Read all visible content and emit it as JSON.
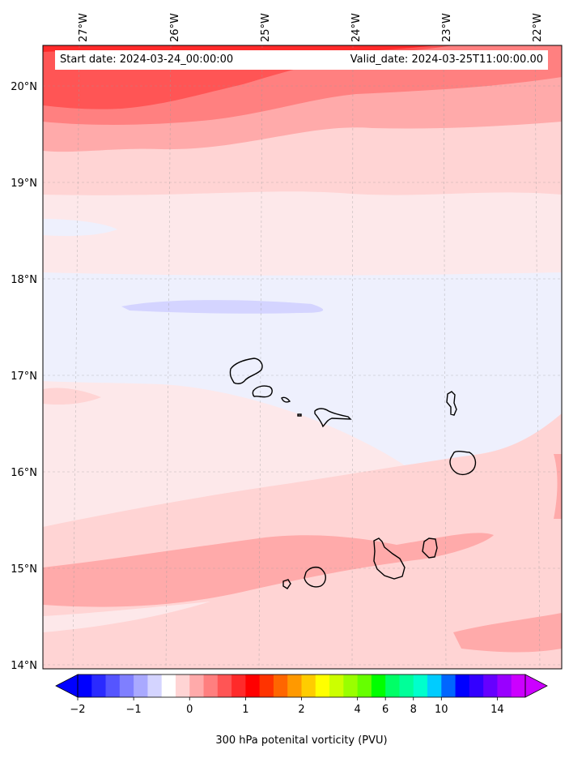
{
  "map": {
    "lon_ticks": [
      "27°W",
      "26°W",
      "25°W",
      "24°W",
      "23°W",
      "22°W"
    ],
    "lat_ticks": [
      "20°N",
      "19°N",
      "18°N",
      "17°N",
      "16°N",
      "15°N",
      "14°N"
    ],
    "lon_range": [
      -27.4,
      -21.7
    ],
    "lat_range": [
      13.95,
      20.4
    ],
    "region": "Cape Verde Islands"
  },
  "info": {
    "start_date": "Start date: 2024-03-24_00:00:00",
    "valid_date": "Valid_date: 2024-03-25T11:00:00.00"
  },
  "colorbar": {
    "title": "300 hPa potenital vorticity (PVU)",
    "tick_labels": [
      "−2",
      "−1",
      "0",
      "1",
      "2",
      "4",
      "6",
      "8",
      "10",
      "14"
    ],
    "colors": [
      "#0000ff",
      "#2a2aff",
      "#5555ff",
      "#7f7fff",
      "#a9a9ff",
      "#d4d4ff",
      "#ffffff",
      "#ffd4d4",
      "#ffaaaa",
      "#ff7f7f",
      "#ff5555",
      "#ff2a2a",
      "#ff0000",
      "#ff3300",
      "#ff6600",
      "#ff9900",
      "#ffcc00",
      "#ffff00",
      "#ccff00",
      "#99ff00",
      "#66ff00",
      "#00ff00",
      "#00ff66",
      "#00ff99",
      "#00ffcc",
      "#00ccff",
      "#0066ff",
      "#0000ff",
      "#3300ff",
      "#6600ff",
      "#9900ff",
      "#cc00ff"
    ],
    "under_color": "#0000ff",
    "over_color": "#cc00ff"
  },
  "field_colors": {
    "weak_negative": "#eef0fd",
    "negative": "#d4d4ff",
    "zero": "#fde8ea",
    "light_positive": "#ffd4d4",
    "positive": "#ffaaaa",
    "mid_positive": "#ff8080",
    "strong_positive": "#ff5555",
    "max_positive": "#ff2a2a"
  }
}
